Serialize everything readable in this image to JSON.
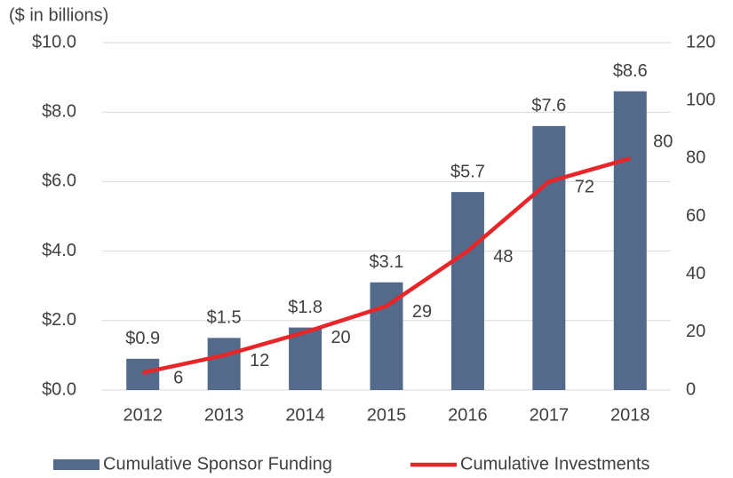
{
  "chart_data": {
    "type": "bar_line",
    "y_axis_label": "($ in billions)",
    "categories": [
      "2012",
      "2013",
      "2014",
      "2015",
      "2016",
      "2017",
      "2018"
    ],
    "series": [
      {
        "name": "Cumulative Sponsor Funding",
        "type": "bar",
        "color": "#536a8a",
        "values": [
          0.9,
          1.5,
          1.8,
          3.1,
          5.7,
          7.6,
          8.6
        ],
        "value_labels": [
          "$0.9",
          "$1.5",
          "$1.8",
          "$3.1",
          "$5.7",
          "$7.6",
          "$8.6"
        ]
      },
      {
        "name": "Cumulative Investments",
        "type": "line",
        "axis": "y2",
        "color": "#e8262a",
        "values": [
          6,
          12,
          20,
          29,
          48,
          72,
          80
        ]
      }
    ],
    "ylim": [
      0,
      10
    ],
    "yticks": [
      {
        "value": 0,
        "label": "$0.0"
      },
      {
        "value": 2,
        "label": "$2.0"
      },
      {
        "value": 4,
        "label": "$4.0"
      },
      {
        "value": 6,
        "label": "$6.0"
      },
      {
        "value": 8,
        "label": "$8.0"
      },
      {
        "value": 10,
        "label": "$10.0"
      }
    ],
    "y2lim": [
      0,
      120
    ],
    "y2ticks": [
      0,
      20,
      40,
      60,
      80,
      100,
      120
    ],
    "grid": true,
    "legend": "bottom"
  }
}
